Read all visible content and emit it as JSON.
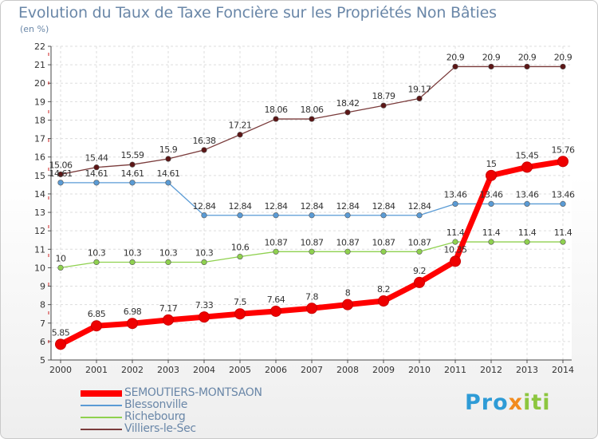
{
  "title": "Evolution du Taux de Taxe Foncière sur les Propriétés Non Bâties",
  "unit": "(en %)",
  "logo": {
    "part1": "Pro",
    "part2": "x",
    "part3": "iti"
  },
  "chart_data": {
    "type": "line",
    "title": "Evolution du Taux de Taxe Foncière sur les Propriétés Non Bâties",
    "ylabel": "(en %)",
    "xlabel": "",
    "x": [
      2000,
      2001,
      2002,
      2003,
      2004,
      2005,
      2006,
      2007,
      2008,
      2009,
      2010,
      2011,
      2012,
      2013,
      2014
    ],
    "ylim": [
      5,
      22
    ],
    "yticks": [
      5,
      6,
      7,
      8,
      9,
      10,
      11,
      12,
      13,
      14,
      15,
      16,
      17,
      18,
      19,
      20,
      21,
      22
    ],
    "grid": true,
    "legend": "bottom-left",
    "series": [
      {
        "name": "SEMOUTIERS-MONTSAON",
        "color": "#ff0000",
        "marker_color": "#ee0000",
        "emphasis": true,
        "values": [
          5.85,
          6.85,
          6.98,
          7.17,
          7.33,
          7.5,
          7.64,
          7.8,
          8,
          8.2,
          9.2,
          10.35,
          15,
          15.45,
          15.76
        ],
        "labels": [
          "5.85",
          "6.85",
          "6.98",
          "7.17",
          "7.33",
          "7.5",
          "7.64",
          "7.8",
          "8",
          "8.2",
          "9.2",
          "10.35",
          "15",
          "15.45",
          "15.76"
        ]
      },
      {
        "name": "Blessonville",
        "color": "#5a9bd5",
        "marker_color": "#5a9bd5",
        "emphasis": false,
        "values": [
          14.61,
          14.61,
          14.61,
          14.61,
          12.84,
          12.84,
          12.84,
          12.84,
          12.84,
          12.84,
          12.84,
          13.46,
          13.46,
          13.46,
          13.46
        ],
        "labels": [
          "14.61",
          "14.61",
          "14.61",
          "14.61",
          "12.84",
          "12.84",
          "12.84",
          "12.84",
          "12.84",
          "12.84",
          "12.84",
          "13.46",
          "13.46",
          "13.46",
          "13.46"
        ]
      },
      {
        "name": "Richebourg",
        "color": "#8fd14f",
        "marker_color": "#8fd14f",
        "emphasis": false,
        "values": [
          10,
          10.3,
          10.3,
          10.3,
          10.3,
          10.6,
          10.87,
          10.87,
          10.87,
          10.87,
          10.87,
          11.4,
          11.4,
          11.4,
          11.4
        ],
        "labels": [
          "10",
          "10.3",
          "10.3",
          "10.3",
          "10.3",
          "10.6",
          "10.87",
          "10.87",
          "10.87",
          "10.87",
          "10.87",
          "11.4",
          "11.4",
          "11.4",
          "11.4"
        ]
      },
      {
        "name": "Villiers-le-Sec",
        "color": "#7a3b3b",
        "marker_color": "#5c1616",
        "emphasis": false,
        "values": [
          15.06,
          15.44,
          15.59,
          15.9,
          16.38,
          17.21,
          18.06,
          18.06,
          18.42,
          18.79,
          19.17,
          20.9,
          20.9,
          20.9,
          20.9
        ],
        "labels": [
          "15.06",
          "15.44",
          "15.59",
          "15.9",
          "16.38",
          "17.21",
          "18.06",
          "18.06",
          "18.42",
          "18.79",
          "19.17",
          "20.9",
          "20.9",
          "20.9",
          "20.9"
        ]
      }
    ]
  }
}
